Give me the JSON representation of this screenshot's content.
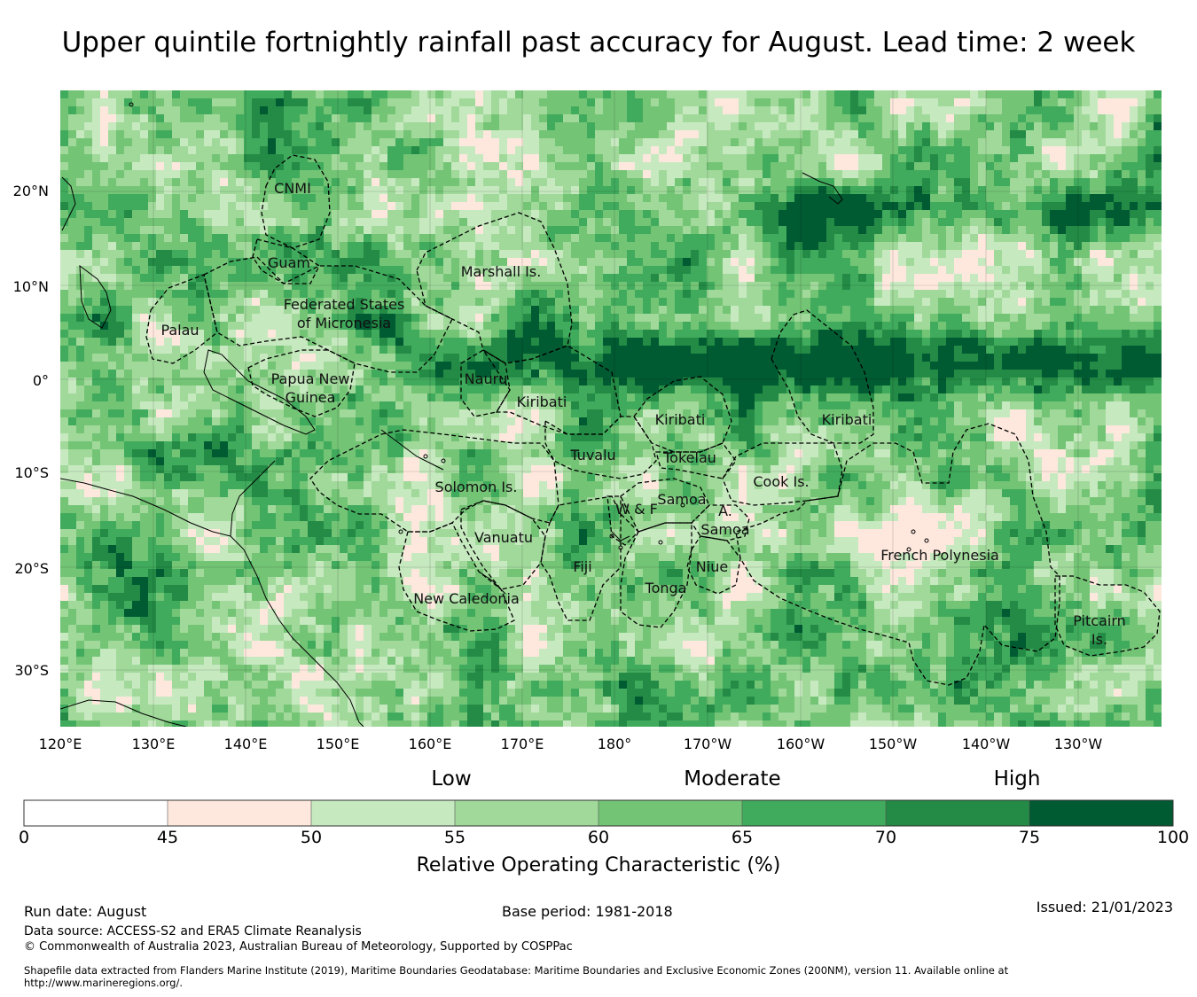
{
  "title": "Upper quintile fortnightly rainfall past accuracy for August. Lead time: 2 week",
  "map": {
    "lat_ticks": [
      "20°N",
      "10°N",
      "0°",
      "10°S",
      "20°S",
      "30°S"
    ],
    "lon_ticks": [
      "120°E",
      "130°E",
      "140°E",
      "150°E",
      "160°E",
      "170°E",
      "180°",
      "170°W",
      "160°W",
      "150°W",
      "140°W",
      "130°W"
    ],
    "regions": [
      {
        "label": "CNMI",
        "lines": [
          "CNMI"
        ]
      },
      {
        "label": "Guam",
        "lines": [
          "Guam"
        ]
      },
      {
        "label": "Marshall Is.",
        "lines": [
          "Marshall Is."
        ]
      },
      {
        "label": "Federated States of Micronesia",
        "lines": [
          "Federated States",
          "of Micronesia"
        ]
      },
      {
        "label": "Palau",
        "lines": [
          "Palau"
        ]
      },
      {
        "label": "Papua New Guinea",
        "lines": [
          "Papua New",
          "Guinea"
        ]
      },
      {
        "label": "Nauru",
        "lines": [
          "Nauru"
        ]
      },
      {
        "label": "Kiribati",
        "lines": [
          "Kiribati"
        ]
      },
      {
        "label": "Kiribati",
        "lines": [
          "Kiribati"
        ]
      },
      {
        "label": "Kiribati",
        "lines": [
          "Kiribati"
        ]
      },
      {
        "label": "Tuvalu",
        "lines": [
          "Tuvalu"
        ]
      },
      {
        "label": "Tokelau",
        "lines": [
          "Tokelau"
        ]
      },
      {
        "label": "Cook Is.",
        "lines": [
          "Cook Is."
        ]
      },
      {
        "label": "Solomon Is.",
        "lines": [
          "Solomon Is."
        ]
      },
      {
        "label": "Samoa",
        "lines": [
          "Samoa"
        ]
      },
      {
        "label": "W & F",
        "lines": [
          "W & F"
        ]
      },
      {
        "label": "A. Samoa",
        "lines": [
          "A.",
          "Samoa"
        ]
      },
      {
        "label": "Vanuatu",
        "lines": [
          "Vanuatu"
        ]
      },
      {
        "label": "Fiji",
        "lines": [
          "Fiji"
        ]
      },
      {
        "label": "Niue",
        "lines": [
          "Niue"
        ]
      },
      {
        "label": "Tonga",
        "lines": [
          "Tonga"
        ]
      },
      {
        "label": "French Polynesia",
        "lines": [
          "French Polynesia"
        ]
      },
      {
        "label": "New Caledonia",
        "lines": [
          "New Caledonia"
        ]
      },
      {
        "label": "Pitcairn Is.",
        "lines": [
          "Pitcairn",
          "Is."
        ]
      }
    ],
    "colors": {
      "c0": "#ffffff",
      "c1": "#fee8de",
      "c2": "#c7e9c0",
      "c3": "#a1d99b",
      "c4": "#74c476",
      "c5": "#41ab5d",
      "c6": "#238b45",
      "c7": "#005a32",
      "boundary": "#000000",
      "coast": "#000000"
    }
  },
  "legend": {
    "categories": [
      "Low",
      "Moderate",
      "High"
    ],
    "bins": [
      {
        "from": 0,
        "to": 45,
        "color": "#ffffff"
      },
      {
        "from": 45,
        "to": 50,
        "color": "#fee8de"
      },
      {
        "from": 50,
        "to": 55,
        "color": "#c7e9c0"
      },
      {
        "from": 55,
        "to": 60,
        "color": "#a1d99b"
      },
      {
        "from": 60,
        "to": 65,
        "color": "#74c476"
      },
      {
        "from": 65,
        "to": 70,
        "color": "#41ab5d"
      },
      {
        "from": 70,
        "to": 75,
        "color": "#238b45"
      },
      {
        "from": 75,
        "to": 100,
        "color": "#005a32"
      }
    ],
    "ticks": [
      "0",
      "45",
      "50",
      "55",
      "60",
      "65",
      "70",
      "75",
      "100"
    ],
    "label": "Relative Operating Characteristic (%)"
  },
  "footer": {
    "run_date": "Run date: August",
    "base_period": "Base period: 1981-2018",
    "issued": "Issued: 21/01/2023",
    "data_source": "Data source: ACCESS-S2 and ERA5 Climate Reanalysis",
    "copyright": "© Commonwealth of Australia 2023, Australian Bureau of Meteorology, Supported by COSPPac",
    "shapefile_line1": "Shapefile data extracted from Flanders Marine Institute (2019), Maritime Boundaries Geodatabase: Maritime Boundaries and Exclusive Economic Zones (200NM), version 11. Available online at",
    "shapefile_line2": "http://www.marineregions.org/."
  }
}
